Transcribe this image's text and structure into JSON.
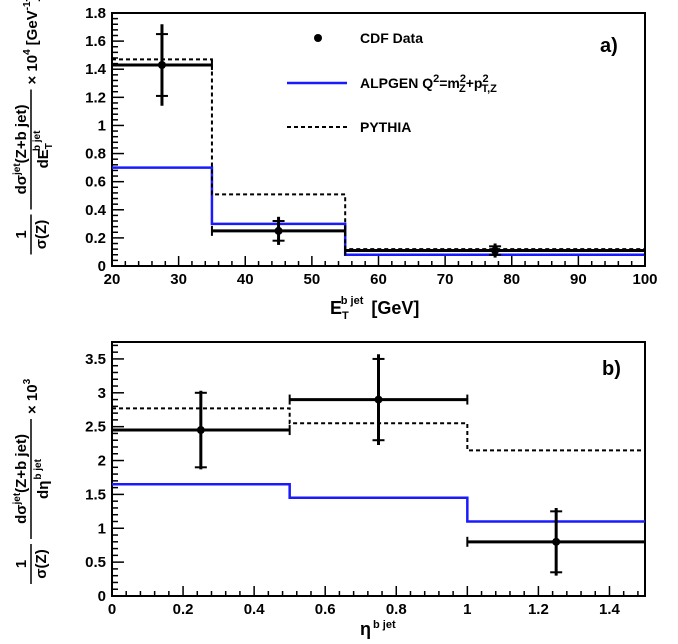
{
  "chart_data": [
    {
      "type": "step",
      "panel_label": "a)",
      "xlabel": {
        "main": "E",
        "sub": "T",
        "sup": "b jet",
        "unit": "[GeV]"
      },
      "ylabel": {
        "prefix_num": "1",
        "prefix_den": "σ(Z)",
        "num": "dσ",
        "num_sup": "jet",
        "num_rest": "(Z+b jet)",
        "den": "dE",
        "den_sub": "T",
        "den_sup": "b jet",
        "factor": "× 10",
        "factor_exp": "4",
        "unit": "[GeV",
        "unit_exp": "-1",
        "unit_close": "]"
      },
      "xlim": [
        20,
        100
      ],
      "ylim": [
        0,
        1.8
      ],
      "xticks": [
        20,
        30,
        40,
        50,
        60,
        70,
        80,
        90,
        100
      ],
      "xtick_labels": [
        "20",
        "30",
        "40",
        "50",
        "60",
        "70",
        "80",
        "90",
        "100"
      ],
      "yticks": [
        0,
        0.2,
        0.4,
        0.6,
        0.8,
        1,
        1.2,
        1.4,
        1.6,
        1.8
      ],
      "ytick_labels": [
        "0",
        "0.2",
        "0.4",
        "0.6",
        "0.8",
        "1",
        "1.2",
        "1.4",
        "1.6",
        "1.8"
      ],
      "legend": [
        {
          "label": "CDF Data",
          "style": "marker"
        },
        {
          "label_main": "ALPGEN Q",
          "label_sup1": "2",
          "label_mid": "=m",
          "label_sup2": "2",
          "label_sub2": "Z",
          "label_plus": "+p",
          "label_sup3": "2",
          "label_sub3": "T,Z",
          "style": "blue"
        },
        {
          "label": "PYTHIA",
          "style": "dashed"
        }
      ],
      "bins": [
        [
          20,
          35
        ],
        [
          35,
          55
        ],
        [
          55,
          100
        ]
      ],
      "series": [
        {
          "name": "CDF Data",
          "style": "data",
          "x": [
            27.5,
            45,
            77.5
          ],
          "y": [
            1.43,
            0.25,
            0.11
          ],
          "err_stat": [
            0.22,
            0.07,
            0.03
          ],
          "err_total": [
            0.29,
            0.1,
            0.05
          ]
        },
        {
          "name": "ALPGEN",
          "style": "blue",
          "y": [
            0.7,
            0.3,
            0.08
          ]
        },
        {
          "name": "PYTHIA",
          "style": "dashed",
          "y": [
            1.47,
            0.51,
            0.12
          ]
        }
      ]
    },
    {
      "type": "step",
      "panel_label": "b)",
      "xlabel": {
        "main": "η",
        "sup": "b jet"
      },
      "ylabel": {
        "prefix_num": "1",
        "prefix_den": "σ(Z)",
        "num": "dσ",
        "num_sup": "jet",
        "num_rest": "(Z+b jet)",
        "den": "dη",
        "den_sup": "b jet",
        "factor": "× 10",
        "factor_exp": "3"
      },
      "xlim": [
        0,
        1.5
      ],
      "ylim": [
        0,
        3.75
      ],
      "xticks": [
        0,
        0.2,
        0.4,
        0.6,
        0.8,
        1,
        1.2,
        1.4
      ],
      "xtick_labels": [
        "0",
        "0.2",
        "0.4",
        "0.6",
        "0.8",
        "1",
        "1.2",
        "1.4"
      ],
      "yticks": [
        0,
        0.5,
        1,
        1.5,
        2,
        2.5,
        3,
        3.5
      ],
      "ytick_labels": [
        "0",
        "0.5",
        "1",
        "1.5",
        "2",
        "2.5",
        "3",
        "3.5"
      ],
      "bins": [
        [
          0,
          0.5
        ],
        [
          0.5,
          1
        ],
        [
          1,
          1.5
        ]
      ],
      "series": [
        {
          "name": "CDF Data",
          "style": "data",
          "x": [
            0.25,
            0.75,
            1.25
          ],
          "y": [
            2.45,
            2.9,
            0.8
          ],
          "err_stat": [
            0.55,
            0.6,
            0.45
          ],
          "err_total": [
            0.58,
            0.67,
            0.5
          ]
        },
        {
          "name": "ALPGEN",
          "style": "blue",
          "y": [
            1.65,
            1.45,
            1.1
          ]
        },
        {
          "name": "PYTHIA",
          "style": "dashed",
          "y": [
            2.77,
            2.55,
            2.15
          ]
        }
      ]
    }
  ]
}
